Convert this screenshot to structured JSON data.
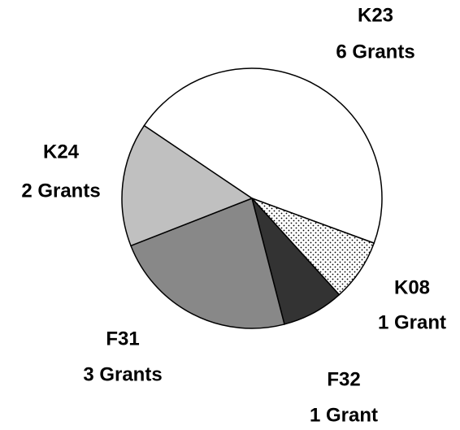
{
  "chart_data": {
    "type": "pie",
    "categories": [
      "K23",
      "K08",
      "F32",
      "F31",
      "K24"
    ],
    "values": [
      6,
      1,
      1,
      3,
      2
    ],
    "value_labels": [
      "6 Grants",
      "1 Grant",
      "1 Grant",
      "3 Grants",
      "2 Grants"
    ],
    "colors": [
      "#ffffff",
      "dots",
      "#333333",
      "#888888",
      "#c0c0c0"
    ]
  }
}
